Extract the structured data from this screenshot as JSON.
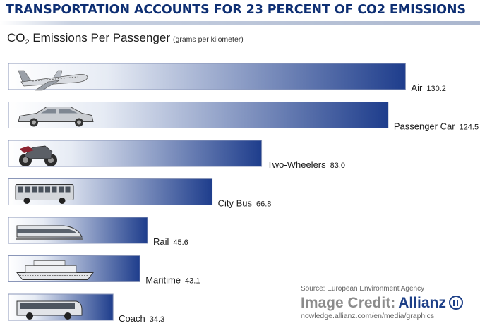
{
  "header": {
    "title": "TRANSPORTATION ACCOUNTS FOR 23 PERCENT OF CO2 EMISSIONS",
    "subtitle_co": "CO",
    "subtitle_sub": "2",
    "subtitle_rest": " Emissions Per Passenger",
    "subtitle_unit": "(grams per kilometer)"
  },
  "chart_data": {
    "type": "bar",
    "orientation": "horizontal",
    "categories": [
      "Air",
      "Passenger Car",
      "Two-Wheelers",
      "City Bus",
      "Rail",
      "Maritime",
      "Coach"
    ],
    "values": [
      130.2,
      124.5,
      83.0,
      66.8,
      45.6,
      43.1,
      34.3
    ],
    "value_labels": [
      "130.2",
      "124.5",
      "83.0",
      "66.8",
      "45.6",
      "43.1",
      "34.3"
    ],
    "icons": [
      "airplane-icon",
      "car-icon",
      "motorcycle-icon",
      "bus-icon",
      "train-icon",
      "ship-icon",
      "coach-icon"
    ],
    "title": "TRANSPORTATION ACCOUNTS FOR 23 PERCENT OF CO2 EMISSIONS",
    "subtitle": "CO2 Emissions Per Passenger (grams per kilometer)",
    "xlabel": "",
    "ylabel": "",
    "grid": false,
    "legend": "none",
    "bar_gradient": [
      "#ffffff",
      "#1e3d8c"
    ],
    "bar_border": "#8a96b8"
  },
  "footer": {
    "source": "Source: European Environment Agency",
    "credit_label": "Image Credit:",
    "credit_brand": "Allianz",
    "url": "nowledge.allianz.com/en/media/graphics"
  },
  "colors": {
    "headline": "#0e2f73",
    "bar_dark": "#1e3d8c",
    "brand": "#1d3f87"
  }
}
